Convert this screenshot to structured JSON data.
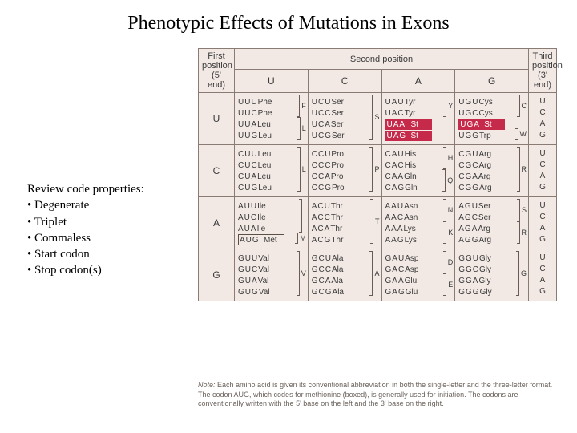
{
  "title": "Phenotypic Effects of Mutations in Exons",
  "properties": {
    "heading": "Review code properties:",
    "items": [
      "Degenerate",
      "Triplet",
      "Commaless",
      "Start codon",
      "Stop codon(s)"
    ]
  },
  "table": {
    "background": "#f2e9e4",
    "border_color": "#8a7c74",
    "highlight_color": "#c62a4a",
    "headers": {
      "first": "First\nposition\n(5' end)",
      "second": "Second position",
      "third": "Third\nposition\n(3' end)",
      "cols": [
        "U",
        "C",
        "A",
        "G"
      ],
      "rows": [
        "U",
        "C",
        "A",
        "G"
      ]
    },
    "third_col": [
      "U",
      "C",
      "A",
      "G"
    ],
    "cells": {
      "U": {
        "U": {
          "lines": [
            [
              "UUU",
              "Phe"
            ],
            [
              "UUC",
              "Phe"
            ],
            [
              "UUA",
              "Leu"
            ],
            [
              "UUG",
              "Leu"
            ]
          ],
          "brackets": [
            {
              "span": [
                0,
                1
              ],
              "sl": "F"
            },
            {
              "span": [
                2,
                3
              ],
              "sl": "L"
            }
          ]
        },
        "C": {
          "lines": [
            [
              "UCU",
              "Ser"
            ],
            [
              "UCC",
              "Ser"
            ],
            [
              "UCA",
              "Ser"
            ],
            [
              "UCG",
              "Ser"
            ]
          ],
          "brackets": [
            {
              "span": [
                0,
                3
              ],
              "sl": "S"
            }
          ]
        },
        "A": {
          "lines": [
            [
              "UAU",
              "Tyr"
            ],
            [
              "UAC",
              "Tyr"
            ],
            [
              "UAA",
              "St",
              "red"
            ],
            [
              "UAG",
              "St",
              "red"
            ]
          ],
          "brackets": [
            {
              "span": [
                0,
                1
              ],
              "sl": "Y"
            }
          ]
        },
        "G": {
          "lines": [
            [
              "UGU",
              "Cys"
            ],
            [
              "UGC",
              "Cys"
            ],
            [
              "UGA",
              "St",
              "red"
            ],
            [
              "UGG",
              "Trp"
            ]
          ],
          "brackets": [
            {
              "span": [
                0,
                1
              ],
              "sl": "C"
            },
            {
              "span": [
                3,
                3
              ],
              "sl": "W"
            }
          ]
        }
      },
      "C": {
        "U": {
          "lines": [
            [
              "CUU",
              "Leu"
            ],
            [
              "CUC",
              "Leu"
            ],
            [
              "CUA",
              "Leu"
            ],
            [
              "CUG",
              "Leu"
            ]
          ],
          "brackets": [
            {
              "span": [
                0,
                3
              ],
              "sl": "L"
            }
          ]
        },
        "C": {
          "lines": [
            [
              "CCU",
              "Pro"
            ],
            [
              "CCC",
              "Pro"
            ],
            [
              "CCA",
              "Pro"
            ],
            [
              "CCG",
              "Pro"
            ]
          ],
          "brackets": [
            {
              "span": [
                0,
                3
              ],
              "sl": "P"
            }
          ]
        },
        "A": {
          "lines": [
            [
              "CAU",
              "His"
            ],
            [
              "CAC",
              "His"
            ],
            [
              "CAA",
              "Gln"
            ],
            [
              "CAG",
              "Gln"
            ]
          ],
          "brackets": [
            {
              "span": [
                0,
                1
              ],
              "sl": "H"
            },
            {
              "span": [
                2,
                3
              ],
              "sl": "Q"
            }
          ]
        },
        "G": {
          "lines": [
            [
              "CGU",
              "Arg"
            ],
            [
              "CGC",
              "Arg"
            ],
            [
              "CGA",
              "Arg"
            ],
            [
              "CGG",
              "Arg"
            ]
          ],
          "brackets": [
            {
              "span": [
                0,
                3
              ],
              "sl": "R"
            }
          ]
        }
      },
      "A": {
        "U": {
          "lines": [
            [
              "AUU",
              "Ile"
            ],
            [
              "AUC",
              "Ile"
            ],
            [
              "AUA",
              "Ile"
            ],
            [
              "AUG",
              "Met",
              "box"
            ]
          ],
          "brackets": [
            {
              "span": [
                0,
                2
              ],
              "sl": "I"
            },
            {
              "span": [
                3,
                3
              ],
              "sl": "M"
            }
          ]
        },
        "C": {
          "lines": [
            [
              "ACU",
              "Thr"
            ],
            [
              "ACC",
              "Thr"
            ],
            [
              "ACA",
              "Thr"
            ],
            [
              "ACG",
              "Thr"
            ]
          ],
          "brackets": [
            {
              "span": [
                0,
                3
              ],
              "sl": "T"
            }
          ]
        },
        "A": {
          "lines": [
            [
              "AAU",
              "Asn"
            ],
            [
              "AAC",
              "Asn"
            ],
            [
              "AAA",
              "Lys"
            ],
            [
              "AAG",
              "Lys"
            ]
          ],
          "brackets": [
            {
              "span": [
                0,
                1
              ],
              "sl": "N"
            },
            {
              "span": [
                2,
                3
              ],
              "sl": "K"
            }
          ]
        },
        "G": {
          "lines": [
            [
              "AGU",
              "Ser"
            ],
            [
              "AGC",
              "Ser"
            ],
            [
              "AGA",
              "Arg"
            ],
            [
              "AGG",
              "Arg"
            ]
          ],
          "brackets": [
            {
              "span": [
                0,
                1
              ],
              "sl": "S"
            },
            {
              "span": [
                2,
                3
              ],
              "sl": "R"
            }
          ]
        }
      },
      "G": {
        "U": {
          "lines": [
            [
              "GUU",
              "Val"
            ],
            [
              "GUC",
              "Val"
            ],
            [
              "GUA",
              "Val"
            ],
            [
              "GUG",
              "Val"
            ]
          ],
          "brackets": [
            {
              "span": [
                0,
                3
              ],
              "sl": "V"
            }
          ]
        },
        "C": {
          "lines": [
            [
              "GCU",
              "Ala"
            ],
            [
              "GCC",
              "Ala"
            ],
            [
              "GCA",
              "Ala"
            ],
            [
              "GCG",
              "Ala"
            ]
          ],
          "brackets": [
            {
              "span": [
                0,
                3
              ],
              "sl": "A"
            }
          ]
        },
        "A": {
          "lines": [
            [
              "GAU",
              "Asp"
            ],
            [
              "GAC",
              "Asp"
            ],
            [
              "GAA",
              "Glu"
            ],
            [
              "GAG",
              "Glu"
            ]
          ],
          "brackets": [
            {
              "span": [
                0,
                1
              ],
              "sl": "D"
            },
            {
              "span": [
                2,
                3
              ],
              "sl": "E"
            }
          ]
        },
        "G": {
          "lines": [
            [
              "GGU",
              "Gly"
            ],
            [
              "GGC",
              "Gly"
            ],
            [
              "GGA",
              "Gly"
            ],
            [
              "GGG",
              "Gly"
            ]
          ],
          "brackets": [
            {
              "span": [
                0,
                3
              ],
              "sl": "G"
            }
          ]
        }
      }
    }
  },
  "note": "Note: Each amino acid is given its conventional abbreviation in both the single-letter and the three-letter format. The codon AUG, which codes for methionine (boxed), is generally used for initiation. The codons are conventionally written with the 5' base on the left and the 3' base on the right."
}
